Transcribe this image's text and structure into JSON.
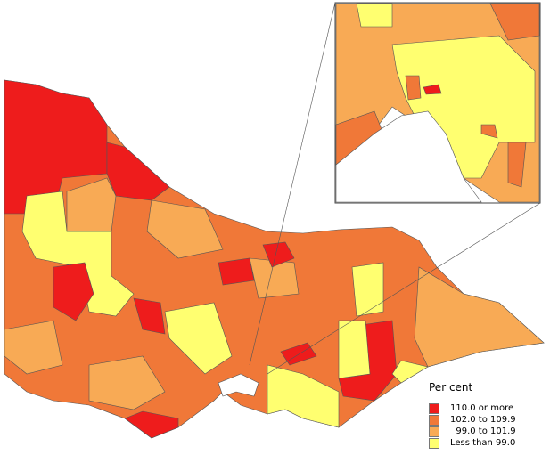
{
  "legend": {
    "title": "Per cent",
    "items": [
      {
        "label": "110.0 or more",
        "color": "#ee1c1c"
      },
      {
        "label": "102.0 to 109.9",
        "color": "#f07838"
      },
      {
        "label": "  99.0 to 101.9",
        "color": "#f8aa55"
      },
      {
        "label": "Less than 99.0",
        "color": "#ffff70"
      }
    ]
  },
  "map": {
    "region": "Victoria",
    "inset": "Melbourne"
  }
}
